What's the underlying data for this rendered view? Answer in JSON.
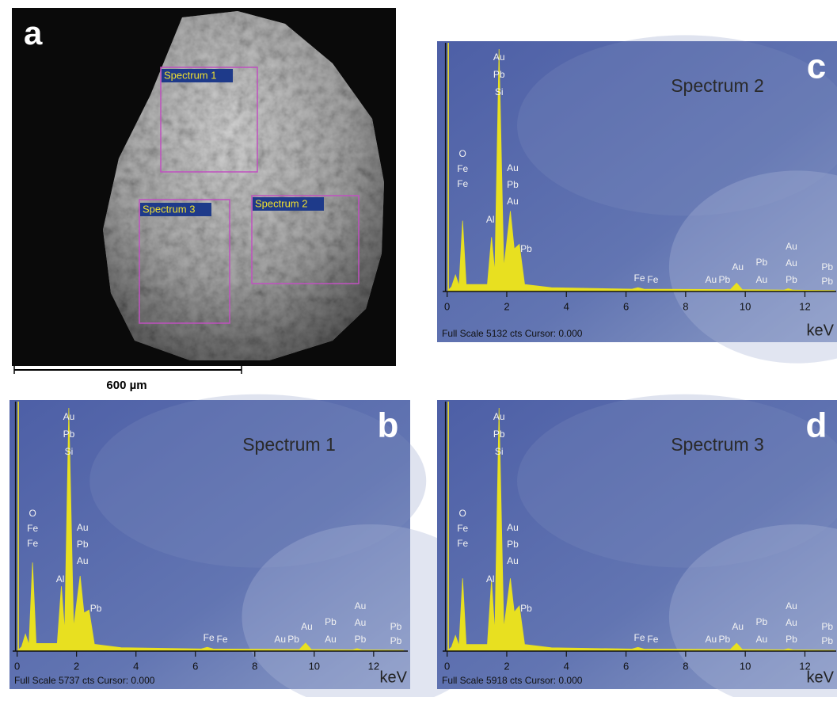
{
  "image_panel": {
    "letter": "a",
    "regions": [
      "Spectrum 1",
      "Spectrum 2",
      "Spectrum 3"
    ],
    "scale_bar": "600 µm"
  },
  "chart_data": [
    {
      "type": "area",
      "letter": "b",
      "title": "Spectrum 1",
      "footer": "Full Scale 5737 cts Cursor: 0.000",
      "x_label": "keV",
      "color": "#e8e020",
      "x": [
        0,
        0.15,
        0.28,
        0.4,
        0.52,
        0.64,
        1.35,
        1.49,
        1.6,
        1.74,
        1.9,
        2.12,
        2.25,
        2.42,
        2.6,
        3.5,
        6.2,
        6.4,
        6.6,
        9.5,
        9.71,
        9.9,
        11.3,
        11.44,
        11.6,
        13
      ],
      "values": [
        0,
        100,
        400,
        150,
        2090,
        180,
        180,
        1530,
        450,
        5737,
        550,
        1775,
        900,
        970,
        160,
        80,
        50,
        90,
        50,
        40,
        190,
        40,
        30,
        60,
        30,
        20
      ],
      "xlim": [
        -0.15,
        13.15
      ],
      "ylim": [
        0,
        5737
      ],
      "xticks": [
        0,
        2,
        4,
        6,
        8,
        10,
        12
      ],
      "peak_labels": [
        {
          "x": 0.52,
          "labels": [
            "O",
            "Fe",
            "Fe"
          ]
        },
        {
          "x": 1.45,
          "labels": [
            "Al"
          ]
        },
        {
          "x": 1.74,
          "labels": [
            "Au",
            "Pb",
            "Si"
          ]
        },
        {
          "x": 2.2,
          "labels": [
            "Au",
            "Pb",
            "Au"
          ]
        },
        {
          "x": 2.65,
          "labels": [
            "Pb"
          ]
        },
        {
          "x": 6.45,
          "labels": [
            "Fe"
          ]
        },
        {
          "x": 6.9,
          "labels": [
            "Fe"
          ]
        },
        {
          "x": 8.85,
          "labels": [
            "Au"
          ]
        },
        {
          "x": 9.3,
          "labels": [
            "Pb"
          ]
        },
        {
          "x": 9.75,
          "labels": [
            "Au"
          ]
        },
        {
          "x": 10.55,
          "labels": [
            "Pb",
            "Au"
          ]
        },
        {
          "x": 11.55,
          "labels": [
            "Au",
            "Au",
            "Pb"
          ]
        },
        {
          "x": 12.75,
          "labels": [
            "Pb",
            "Pb"
          ]
        }
      ]
    },
    {
      "type": "area",
      "letter": "c",
      "title": "Spectrum 2",
      "footer": "Full Scale 5132 cts Cursor: 0.000",
      "x_label": "keV",
      "color": "#e8e020",
      "x": [
        0,
        0.15,
        0.28,
        0.4,
        0.52,
        0.64,
        1.35,
        1.49,
        1.6,
        1.74,
        1.9,
        2.12,
        2.25,
        2.42,
        2.6,
        3.5,
        6.2,
        6.4,
        6.6,
        9.5,
        9.71,
        9.9,
        11.3,
        11.44,
        11.6,
        13
      ],
      "values": [
        0,
        100,
        350,
        120,
        1500,
        150,
        150,
        1150,
        400,
        5132,
        500,
        1700,
        900,
        1000,
        150,
        80,
        50,
        80,
        50,
        40,
        180,
        40,
        30,
        60,
        30,
        20
      ],
      "xlim": [
        -0.15,
        13.05
      ],
      "ylim": [
        0,
        5132
      ],
      "xticks": [
        0,
        2,
        4,
        6,
        8,
        10,
        12
      ],
      "peak_labels": [
        {
          "x": 0.52,
          "labels": [
            "O",
            "Fe",
            "Fe"
          ]
        },
        {
          "x": 1.45,
          "labels": [
            "Al"
          ]
        },
        {
          "x": 1.74,
          "labels": [
            "Au",
            "Pb",
            "Si"
          ]
        },
        {
          "x": 2.2,
          "labels": [
            "Au",
            "Pb",
            "Au"
          ]
        },
        {
          "x": 2.65,
          "labels": [
            "Pb"
          ]
        },
        {
          "x": 6.45,
          "labels": [
            "Fe"
          ]
        },
        {
          "x": 6.9,
          "labels": [
            "Fe"
          ]
        },
        {
          "x": 8.85,
          "labels": [
            "Au"
          ]
        },
        {
          "x": 9.3,
          "labels": [
            "Pb"
          ]
        },
        {
          "x": 9.75,
          "labels": [
            "Au"
          ]
        },
        {
          "x": 10.55,
          "labels": [
            "Pb",
            "Au"
          ]
        },
        {
          "x": 11.55,
          "labels": [
            "Au",
            "Au",
            "Pb"
          ]
        },
        {
          "x": 12.75,
          "labels": [
            "Pb",
            "Pb"
          ]
        }
      ]
    },
    {
      "type": "area",
      "letter": "d",
      "title": "Spectrum 3",
      "footer": "Full Scale 5918 cts Cursor: 0.000",
      "x_label": "keV",
      "color": "#e8e020",
      "x": [
        0,
        0.15,
        0.28,
        0.4,
        0.52,
        0.64,
        1.35,
        1.49,
        1.6,
        1.74,
        1.9,
        2.12,
        2.25,
        2.42,
        2.6,
        3.5,
        6.2,
        6.4,
        6.6,
        9.5,
        9.71,
        9.9,
        11.3,
        11.44,
        11.6,
        13
      ],
      "values": [
        0,
        100,
        380,
        130,
        1770,
        160,
        160,
        1720,
        450,
        5918,
        550,
        1770,
        950,
        1100,
        160,
        80,
        50,
        90,
        50,
        40,
        190,
        40,
        30,
        60,
        30,
        20
      ],
      "xlim": [
        -0.15,
        13.05
      ],
      "ylim": [
        0,
        5918
      ],
      "xticks": [
        0,
        2,
        4,
        6,
        8,
        10,
        12
      ],
      "peak_labels": [
        {
          "x": 0.52,
          "labels": [
            "O",
            "Fe",
            "Fe"
          ]
        },
        {
          "x": 1.45,
          "labels": [
            "Al"
          ]
        },
        {
          "x": 1.74,
          "labels": [
            "Au",
            "Pb",
            "Si"
          ]
        },
        {
          "x": 2.2,
          "labels": [
            "Au",
            "Pb",
            "Au"
          ]
        },
        {
          "x": 2.65,
          "labels": [
            "Pb"
          ]
        },
        {
          "x": 6.45,
          "labels": [
            "Fe"
          ]
        },
        {
          "x": 6.9,
          "labels": [
            "Fe"
          ]
        },
        {
          "x": 8.85,
          "labels": [
            "Au"
          ]
        },
        {
          "x": 9.3,
          "labels": [
            "Pb"
          ]
        },
        {
          "x": 9.75,
          "labels": [
            "Au"
          ]
        },
        {
          "x": 10.55,
          "labels": [
            "Pb",
            "Au"
          ]
        },
        {
          "x": 11.55,
          "labels": [
            "Au",
            "Au",
            "Pb"
          ]
        },
        {
          "x": 12.75,
          "labels": [
            "Pb",
            "Pb"
          ]
        }
      ]
    }
  ]
}
